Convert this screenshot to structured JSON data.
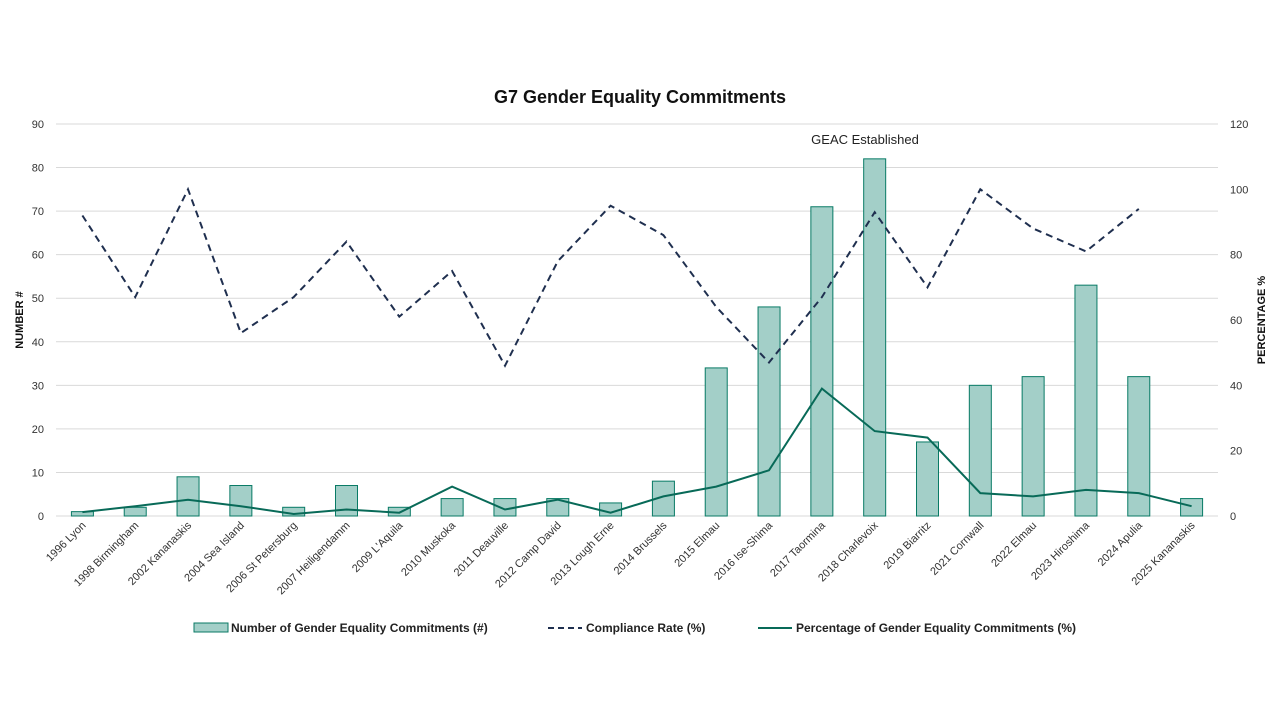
{
  "chart_data": {
    "type": "bar",
    "title": "G7 Gender Equality Commitments",
    "ylabel": "NUMBER #",
    "y2label": "PERCENTAGE %",
    "ylim": [
      0,
      90
    ],
    "y2lim": [
      0,
      120
    ],
    "yticks": [
      0,
      10,
      20,
      30,
      40,
      50,
      60,
      70,
      80,
      90
    ],
    "y2ticks": [
      0,
      20,
      40,
      60,
      80,
      100,
      120
    ],
    "grid": true,
    "legend_placement": "bottom",
    "annotation": {
      "text": "GEAC Established",
      "category": "2018 Charlevoix"
    },
    "categories": [
      "1996 Lyon",
      "1998 Birmingham",
      "2002 Kananaskis",
      "2004 Sea Island",
      "2006 St Petersburg",
      "2007 Heiligendamm",
      "2009 L'Aquila",
      "2010 Muskoka",
      "2011 Deauville",
      "2012 Camp David",
      "2013 Lough Erne",
      "2014 Brussels",
      "2015 Elmau",
      "2016 Ise-Shima",
      "2017 Taormina",
      "2018 Charlevoix",
      "2019 Biarritz",
      "2021 Cornwall",
      "2022 Elmau",
      "2023 Hiroshima",
      "2024 Apulia",
      "2025 Kananaskis"
    ],
    "series": [
      {
        "name": "Number of Gender Equality Commitments (#)",
        "type": "bar",
        "axis": "left",
        "color": "#a3cfc8",
        "stroke": "#087a65",
        "values": [
          1,
          2,
          9,
          7,
          2,
          7,
          2,
          4,
          4,
          4,
          3,
          8,
          34,
          48,
          71,
          82,
          17,
          30,
          32,
          53,
          32,
          4
        ]
      },
      {
        "name": "Compliance Rate (%)",
        "type": "line",
        "dash": true,
        "axis": "right",
        "color": "#1f2f4f",
        "values": [
          92,
          67,
          100,
          56,
          67,
          84,
          61,
          75,
          46,
          78,
          95,
          86,
          64,
          47,
          67,
          93,
          70,
          100,
          88,
          81,
          94,
          null
        ]
      },
      {
        "name": "Percentage of Gender Equality Commitments (%)",
        "type": "line",
        "axis": "right",
        "color": "#086a58",
        "values": [
          1.2,
          3,
          5,
          3,
          0.6,
          2,
          1,
          9,
          2,
          5,
          1,
          6,
          9,
          14,
          39,
          26,
          24,
          7,
          6,
          8,
          7,
          3
        ]
      }
    ]
  }
}
